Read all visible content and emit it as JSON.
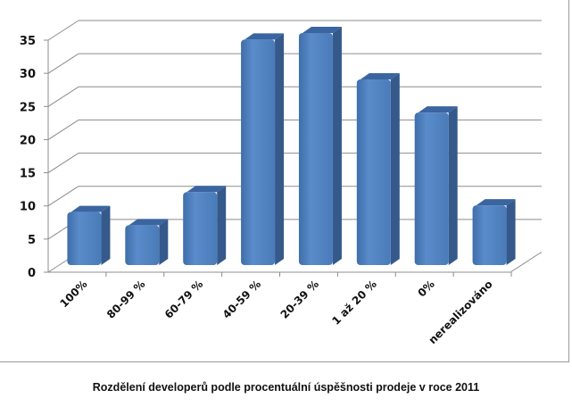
{
  "chart_data": {
    "type": "bar",
    "style": "3d-column",
    "title": "Rozdělení developerů podle procentuální úspěšnosti prodeje v roce 2011",
    "xlabel": "",
    "ylabel": "",
    "categories": [
      "100%",
      "80-99 %",
      "60-79 %",
      "40-59 %",
      "20-39 %",
      "1 až 20 %",
      "0%",
      "nerealizováno"
    ],
    "values": [
      8,
      6,
      11,
      34,
      35,
      28,
      23,
      9
    ],
    "ylim": [
      0,
      35
    ],
    "yticks": [
      "0",
      "5",
      "10",
      "15",
      "20",
      "25",
      "30",
      "35"
    ],
    "grid": true,
    "legend": "none",
    "colors": {
      "bar_front": "#4f81bd",
      "bar_side": "#35598a",
      "bar_top": "#3a65a0",
      "grid": "#8c8c8c"
    }
  }
}
